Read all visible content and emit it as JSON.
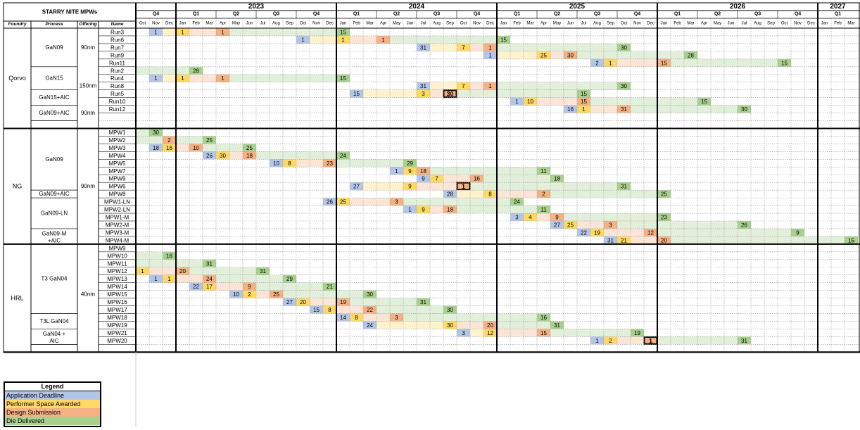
{
  "title": "STARRY NITE MPWs",
  "headers": {
    "foundry": "Foundry",
    "process": "Process",
    "offering": "Offering",
    "name": "Name"
  },
  "colors": {
    "blue": "#B4C6E7",
    "yellow": "#FFD966",
    "orange": "#F4B183",
    "green": "#A9D18E",
    "pale_green": "#E2EFDA",
    "pale_orange": "#FBE5D6",
    "pale_yellow": "#FFF2CC"
  },
  "years": [
    {
      "label": "",
      "start": 0,
      "span": 3
    },
    {
      "label": "2023",
      "start": 3,
      "span": 12
    },
    {
      "label": "2024",
      "start": 15,
      "span": 12
    },
    {
      "label": "2025",
      "start": 27,
      "span": 12
    },
    {
      "label": "2026",
      "start": 39,
      "span": 12
    },
    {
      "label": "2027",
      "start": 51,
      "span": 3
    }
  ],
  "quarters": [
    {
      "label": "Q4",
      "start": 0
    },
    {
      "label": "Q1",
      "start": 3
    },
    {
      "label": "Q2",
      "start": 6
    },
    {
      "label": "Q3",
      "start": 9
    },
    {
      "label": "Q4",
      "start": 12
    },
    {
      "label": "Q1",
      "start": 15
    },
    {
      "label": "Q2",
      "start": 18
    },
    {
      "label": "Q3",
      "start": 21
    },
    {
      "label": "Q4",
      "start": 24
    },
    {
      "label": "Q1",
      "start": 27
    },
    {
      "label": "Q2",
      "start": 30
    },
    {
      "label": "Q3",
      "start": 33
    },
    {
      "label": "Q4",
      "start": 36
    },
    {
      "label": "Q1",
      "start": 39
    },
    {
      "label": "Q2",
      "start": 42
    },
    {
      "label": "Q3",
      "start": 45
    },
    {
      "label": "Q4",
      "start": 48
    },
    {
      "label": "Q1",
      "start": 51
    }
  ],
  "months": [
    "Oct",
    "Nov",
    "Dec",
    "Jan",
    "Feb",
    "Mar",
    "Apr",
    "May",
    "Jun",
    "Jul",
    "Aug",
    "Sep",
    "Oct",
    "Nov",
    "Dec",
    "Jan",
    "Feb",
    "Mar",
    "Apr",
    "May",
    "Jun",
    "Jul",
    "Aug",
    "Sep",
    "Oct",
    "Nov",
    "Dec",
    "Jan",
    "Feb",
    "Mar",
    "Apr",
    "May",
    "Jun",
    "Jul",
    "Aug",
    "Sep",
    "Oct",
    "Nov",
    "Dec",
    "Jan",
    "Feb",
    "Mar",
    "Apr",
    "May",
    "Jun",
    "Jul",
    "Aug",
    "Sep",
    "Oct",
    "Nov",
    "Dec",
    "Jan",
    "Feb",
    "Mar"
  ],
  "groups": [
    {
      "foundry": "Qorvo",
      "first": 0,
      "rows": 13
    },
    {
      "foundry": "NG",
      "first": 13,
      "rows": 15
    },
    {
      "foundry": "HRL",
      "first": 28,
      "rows": 14
    }
  ],
  "processes": [
    {
      "label": "GaN09",
      "first": 0,
      "rows": 5
    },
    {
      "label": "GaN15",
      "first": 5,
      "rows": 3
    },
    {
      "label": "GaN15+AIC",
      "first": 8,
      "rows": 2
    },
    {
      "label": "GaN09+AIC",
      "first": 10,
      "rows": 2
    },
    {
      "label": "GaN09",
      "first": 13,
      "rows": 8
    },
    {
      "label": "GaN09+AIC",
      "first": 21,
      "rows": 1
    },
    {
      "label": "GaN09-LN",
      "first": 22,
      "rows": 4
    },
    {
      "label": "GaN09-M +AIC",
      "first": 26,
      "rows": 2
    },
    {
      "label": "T3 GaN04",
      "first": 28,
      "rows": 9
    },
    {
      "label": "T3L GaN04",
      "first": 37,
      "rows": 2
    },
    {
      "label": "GaN04 + AIC",
      "first": 39,
      "rows": 2
    }
  ],
  "offerings": [
    {
      "label": "90nm",
      "first": 0,
      "rows": 5
    },
    {
      "label": "150nm",
      "first": 5,
      "rows": 5
    },
    {
      "label": "90nm",
      "first": 10,
      "rows": 2
    },
    {
      "label": "90nm",
      "first": 13,
      "rows": 15
    },
    {
      "label": "40nm",
      "first": 28,
      "rows": 13
    }
  ],
  "runs": [
    {
      "name": "Run3",
      "s": 1,
      "e": 15,
      "m": [
        [
          1,
          "b",
          "1"
        ],
        [
          3,
          "y",
          "1"
        ],
        [
          6,
          "o",
          "1"
        ],
        [
          15,
          "g",
          "15"
        ]
      ]
    },
    {
      "name": "Run6",
      "s": 12,
      "e": 27,
      "m": [
        [
          12,
          "b",
          "1"
        ],
        [
          15,
          "y",
          "1"
        ],
        [
          18,
          "o",
          "1"
        ],
        [
          27,
          "g",
          "15"
        ]
      ]
    },
    {
      "name": "Run7",
      "s": 21,
      "e": 36,
      "m": [
        [
          21,
          "b",
          "31"
        ],
        [
          24,
          "y",
          "7"
        ],
        [
          26,
          "o",
          "1"
        ],
        [
          36,
          "g",
          "30"
        ]
      ]
    },
    {
      "name": "Run9",
      "s": 26,
      "e": 41,
      "m": [
        [
          26,
          "b",
          "1"
        ],
        [
          30,
          "y",
          "25"
        ],
        [
          32,
          "o",
          "30"
        ],
        [
          41,
          "g",
          "28"
        ]
      ]
    },
    {
      "name": "Run11",
      "s": 34,
      "e": 48,
      "m": [
        [
          34,
          "b",
          "2"
        ],
        [
          35,
          "y",
          "1"
        ],
        [
          39,
          "o",
          "15"
        ],
        [
          48,
          "g",
          "15"
        ]
      ]
    },
    {
      "name": "Run2",
      "s": 0,
      "e": 4,
      "m": [
        [
          4,
          "g",
          "28"
        ]
      ]
    },
    {
      "name": "Run4",
      "s": 1,
      "e": 15,
      "m": [
        [
          1,
          "b",
          "1"
        ],
        [
          3,
          "y",
          "1"
        ],
        [
          6,
          "o",
          "1"
        ],
        [
          15,
          "g",
          "15"
        ]
      ]
    },
    {
      "name": "Run8",
      "s": 21,
      "e": 36,
      "m": [
        [
          21,
          "b",
          "31"
        ],
        [
          24,
          "y",
          "7"
        ],
        [
          26,
          "o",
          "1"
        ],
        [
          36,
          "g",
          "30"
        ]
      ]
    },
    {
      "name": "Run5",
      "s": 16,
      "e": 33,
      "m": [
        [
          16,
          "b",
          "15"
        ],
        [
          21,
          "y",
          "3"
        ],
        [
          23,
          "o",
          "30",
          "bold"
        ],
        [
          33,
          "g",
          "15"
        ]
      ]
    },
    {
      "name": "Run10",
      "s": 28,
      "e": 42,
      "m": [
        [
          28,
          "b",
          "1"
        ],
        [
          29,
          "y",
          "10"
        ],
        [
          33,
          "o",
          "15"
        ],
        [
          42,
          "g",
          "15"
        ]
      ]
    },
    {
      "name": "Run12",
      "s": 32,
      "e": 45,
      "m": [
        [
          32,
          "b",
          "16"
        ],
        [
          33,
          "y",
          "1"
        ],
        [
          36,
          "o",
          "31"
        ],
        [
          45,
          "g",
          "30"
        ]
      ]
    },
    {
      "name": "",
      "s": -1,
      "e": -1,
      "m": []
    },
    {
      "name": "",
      "s": -1,
      "e": -1,
      "m": []
    },
    {
      "name": "MPW1",
      "s": 0,
      "e": 1,
      "m": [
        [
          1,
          "g",
          "30"
        ]
      ]
    },
    {
      "name": "MPW2",
      "s": 0,
      "e": 5,
      "m": [
        [
          2,
          "o",
          "2"
        ],
        [
          5,
          "g",
          "25"
        ]
      ]
    },
    {
      "name": "MPW3",
      "s": 1,
      "e": 8,
      "m": [
        [
          1,
          "b",
          "18"
        ],
        [
          2,
          "y",
          "16"
        ],
        [
          4,
          "o",
          "10"
        ],
        [
          8,
          "g",
          "25"
        ]
      ]
    },
    {
      "name": "MPW4",
      "s": 5,
      "e": 15,
      "m": [
        [
          5,
          "b",
          "26"
        ],
        [
          6,
          "y",
          "30"
        ],
        [
          8,
          "o",
          "18"
        ],
        [
          15,
          "g",
          "24"
        ]
      ]
    },
    {
      "name": "MPW5",
      "s": 10,
      "e": 20,
      "m": [
        [
          10,
          "b",
          "10"
        ],
        [
          11,
          "y",
          "8"
        ],
        [
          14,
          "o",
          "23"
        ],
        [
          20,
          "g",
          "29"
        ]
      ]
    },
    {
      "name": "MPW7",
      "s": 19,
      "e": 30,
      "m": [
        [
          19,
          "b",
          "1"
        ],
        [
          20,
          "y",
          "9"
        ],
        [
          21,
          "o",
          "18"
        ],
        [
          30,
          "g",
          "11"
        ]
      ]
    },
    {
      "name": "MPW9",
      "s": 21,
      "e": 31,
      "m": [
        [
          21,
          "b",
          "9"
        ],
        [
          22,
          "y",
          "7"
        ],
        [
          25,
          "o",
          "16"
        ],
        [
          31,
          "g",
          "18"
        ]
      ]
    },
    {
      "name": "MPW6",
      "s": 16,
      "e": 36,
      "m": [
        [
          16,
          "b",
          "27"
        ],
        [
          20,
          "y",
          "9"
        ],
        [
          24,
          "o",
          "1",
          "bold"
        ],
        [
          36,
          "g",
          "31"
        ]
      ]
    },
    {
      "name": "MPW8",
      "s": 23,
      "e": 39,
      "m": [
        [
          23,
          "b",
          "28"
        ],
        [
          26,
          "y",
          "8"
        ],
        [
          30,
          "o",
          "2"
        ],
        [
          39,
          "g",
          "25"
        ]
      ]
    },
    {
      "name": "MPW1-LN",
      "s": 14,
      "e": 28,
      "m": [
        [
          14,
          "b",
          "26"
        ],
        [
          15,
          "y",
          "25"
        ],
        [
          19,
          "o",
          "3"
        ],
        [
          28,
          "g",
          "24"
        ]
      ]
    },
    {
      "name": "MPW2-LN",
      "s": 20,
      "e": 30,
      "m": [
        [
          20,
          "b",
          "1"
        ],
        [
          21,
          "y",
          "9"
        ],
        [
          23,
          "o",
          "18"
        ],
        [
          30,
          "g",
          "11"
        ]
      ]
    },
    {
      "name": "MPW1-M",
      "s": 28,
      "e": 39,
      "m": [
        [
          28,
          "b",
          "3"
        ],
        [
          29,
          "y",
          "4"
        ],
        [
          31,
          "o",
          "9"
        ],
        [
          39,
          "g",
          "23"
        ]
      ]
    },
    {
      "name": "MPW2-M",
      "s": 31,
      "e": 45,
      "m": [
        [
          31,
          "b",
          "27"
        ],
        [
          32,
          "y",
          "25"
        ],
        [
          35,
          "o",
          "3"
        ],
        [
          45,
          "g",
          "26"
        ]
      ]
    },
    {
      "name": "MPW3-M",
      "s": 33,
      "e": 49,
      "m": [
        [
          33,
          "b",
          "22"
        ],
        [
          34,
          "y",
          "19"
        ],
        [
          38,
          "o",
          "12"
        ],
        [
          49,
          "g",
          "9"
        ]
      ]
    },
    {
      "name": "MPW4-M",
      "s": 35,
      "e": 53,
      "m": [
        [
          35,
          "b",
          "31"
        ],
        [
          36,
          "y",
          "21"
        ],
        [
          39,
          "o",
          "20"
        ],
        [
          53,
          "g",
          "15"
        ]
      ]
    },
    {
      "name": "MPW9",
      "s": -1,
      "e": -1,
      "m": []
    },
    {
      "name": "MPW10",
      "s": 0,
      "e": 2,
      "m": [
        [
          2,
          "g",
          "16"
        ]
      ]
    },
    {
      "name": "MPW11",
      "s": 0,
      "e": 5,
      "m": [
        [
          5,
          "g",
          "31"
        ]
      ]
    },
    {
      "name": "MPW12",
      "s": 0,
      "e": 9,
      "m": [
        [
          0,
          "y",
          "1"
        ],
        [
          3,
          "o",
          "20"
        ],
        [
          9,
          "g",
          "31"
        ]
      ]
    },
    {
      "name": "MPW13",
      "s": 1,
      "e": 11,
      "m": [
        [
          1,
          "b",
          "1"
        ],
        [
          2,
          "y",
          "1"
        ],
        [
          5,
          "o",
          "24"
        ],
        [
          11,
          "g",
          "29"
        ]
      ]
    },
    {
      "name": "MPW14",
      "s": 4,
      "e": 14,
      "m": [
        [
          4,
          "b",
          "22"
        ],
        [
          5,
          "y",
          "17"
        ],
        [
          8,
          "o",
          "9"
        ],
        [
          14,
          "g",
          "21"
        ]
      ]
    },
    {
      "name": "MPW15",
      "s": 7,
      "e": 17,
      "m": [
        [
          7,
          "b",
          "10"
        ],
        [
          8,
          "y",
          "2"
        ],
        [
          10,
          "o",
          "25"
        ],
        [
          17,
          "g",
          "30"
        ]
      ]
    },
    {
      "name": "MPW16",
      "s": 11,
      "e": 21,
      "m": [
        [
          11,
          "b",
          "27"
        ],
        [
          12,
          "y",
          "20"
        ],
        [
          15,
          "o",
          "19"
        ],
        [
          21,
          "g",
          "31"
        ]
      ]
    },
    {
      "name": "MPW17",
      "s": 13,
      "e": 23,
      "m": [
        [
          13,
          "b",
          "15"
        ],
        [
          14,
          "y",
          "8"
        ],
        [
          17,
          "o",
          "22"
        ],
        [
          23,
          "g",
          "30"
        ]
      ]
    },
    {
      "name": "MPW18",
      "s": 15,
      "e": 30,
      "m": [
        [
          15,
          "b",
          "14"
        ],
        [
          16,
          "y",
          "8"
        ],
        [
          19,
          "o",
          "3"
        ],
        [
          30,
          "g",
          "16"
        ]
      ]
    },
    {
      "name": "MPW19",
      "s": 17,
      "e": 31,
      "m": [
        [
          17,
          "b",
          "24"
        ],
        [
          23,
          "y",
          "30"
        ],
        [
          26,
          "o",
          "20"
        ],
        [
          31,
          "g",
          "31"
        ]
      ]
    },
    {
      "name": "MPW21",
      "s": 24,
      "e": 37,
      "m": [
        [
          24,
          "b",
          "3"
        ],
        [
          26,
          "y",
          "12"
        ],
        [
          30,
          "o",
          "15"
        ],
        [
          37,
          "g",
          "19"
        ]
      ]
    },
    {
      "name": "MPW20",
      "s": 34,
      "e": 45,
      "m": [
        [
          34,
          "b",
          "1"
        ],
        [
          35,
          "y",
          "2"
        ],
        [
          38,
          "o",
          "1",
          "bold"
        ],
        [
          45,
          "g",
          "31"
        ]
      ]
    }
  ],
  "legend": {
    "title": "Legend",
    "items": [
      {
        "key": "b",
        "label": "Application Deadline"
      },
      {
        "key": "y",
        "label": "Performer Space Awarded"
      },
      {
        "key": "o",
        "label": "Design Submission"
      },
      {
        "key": "g",
        "label": "Die Delivered"
      }
    ]
  }
}
